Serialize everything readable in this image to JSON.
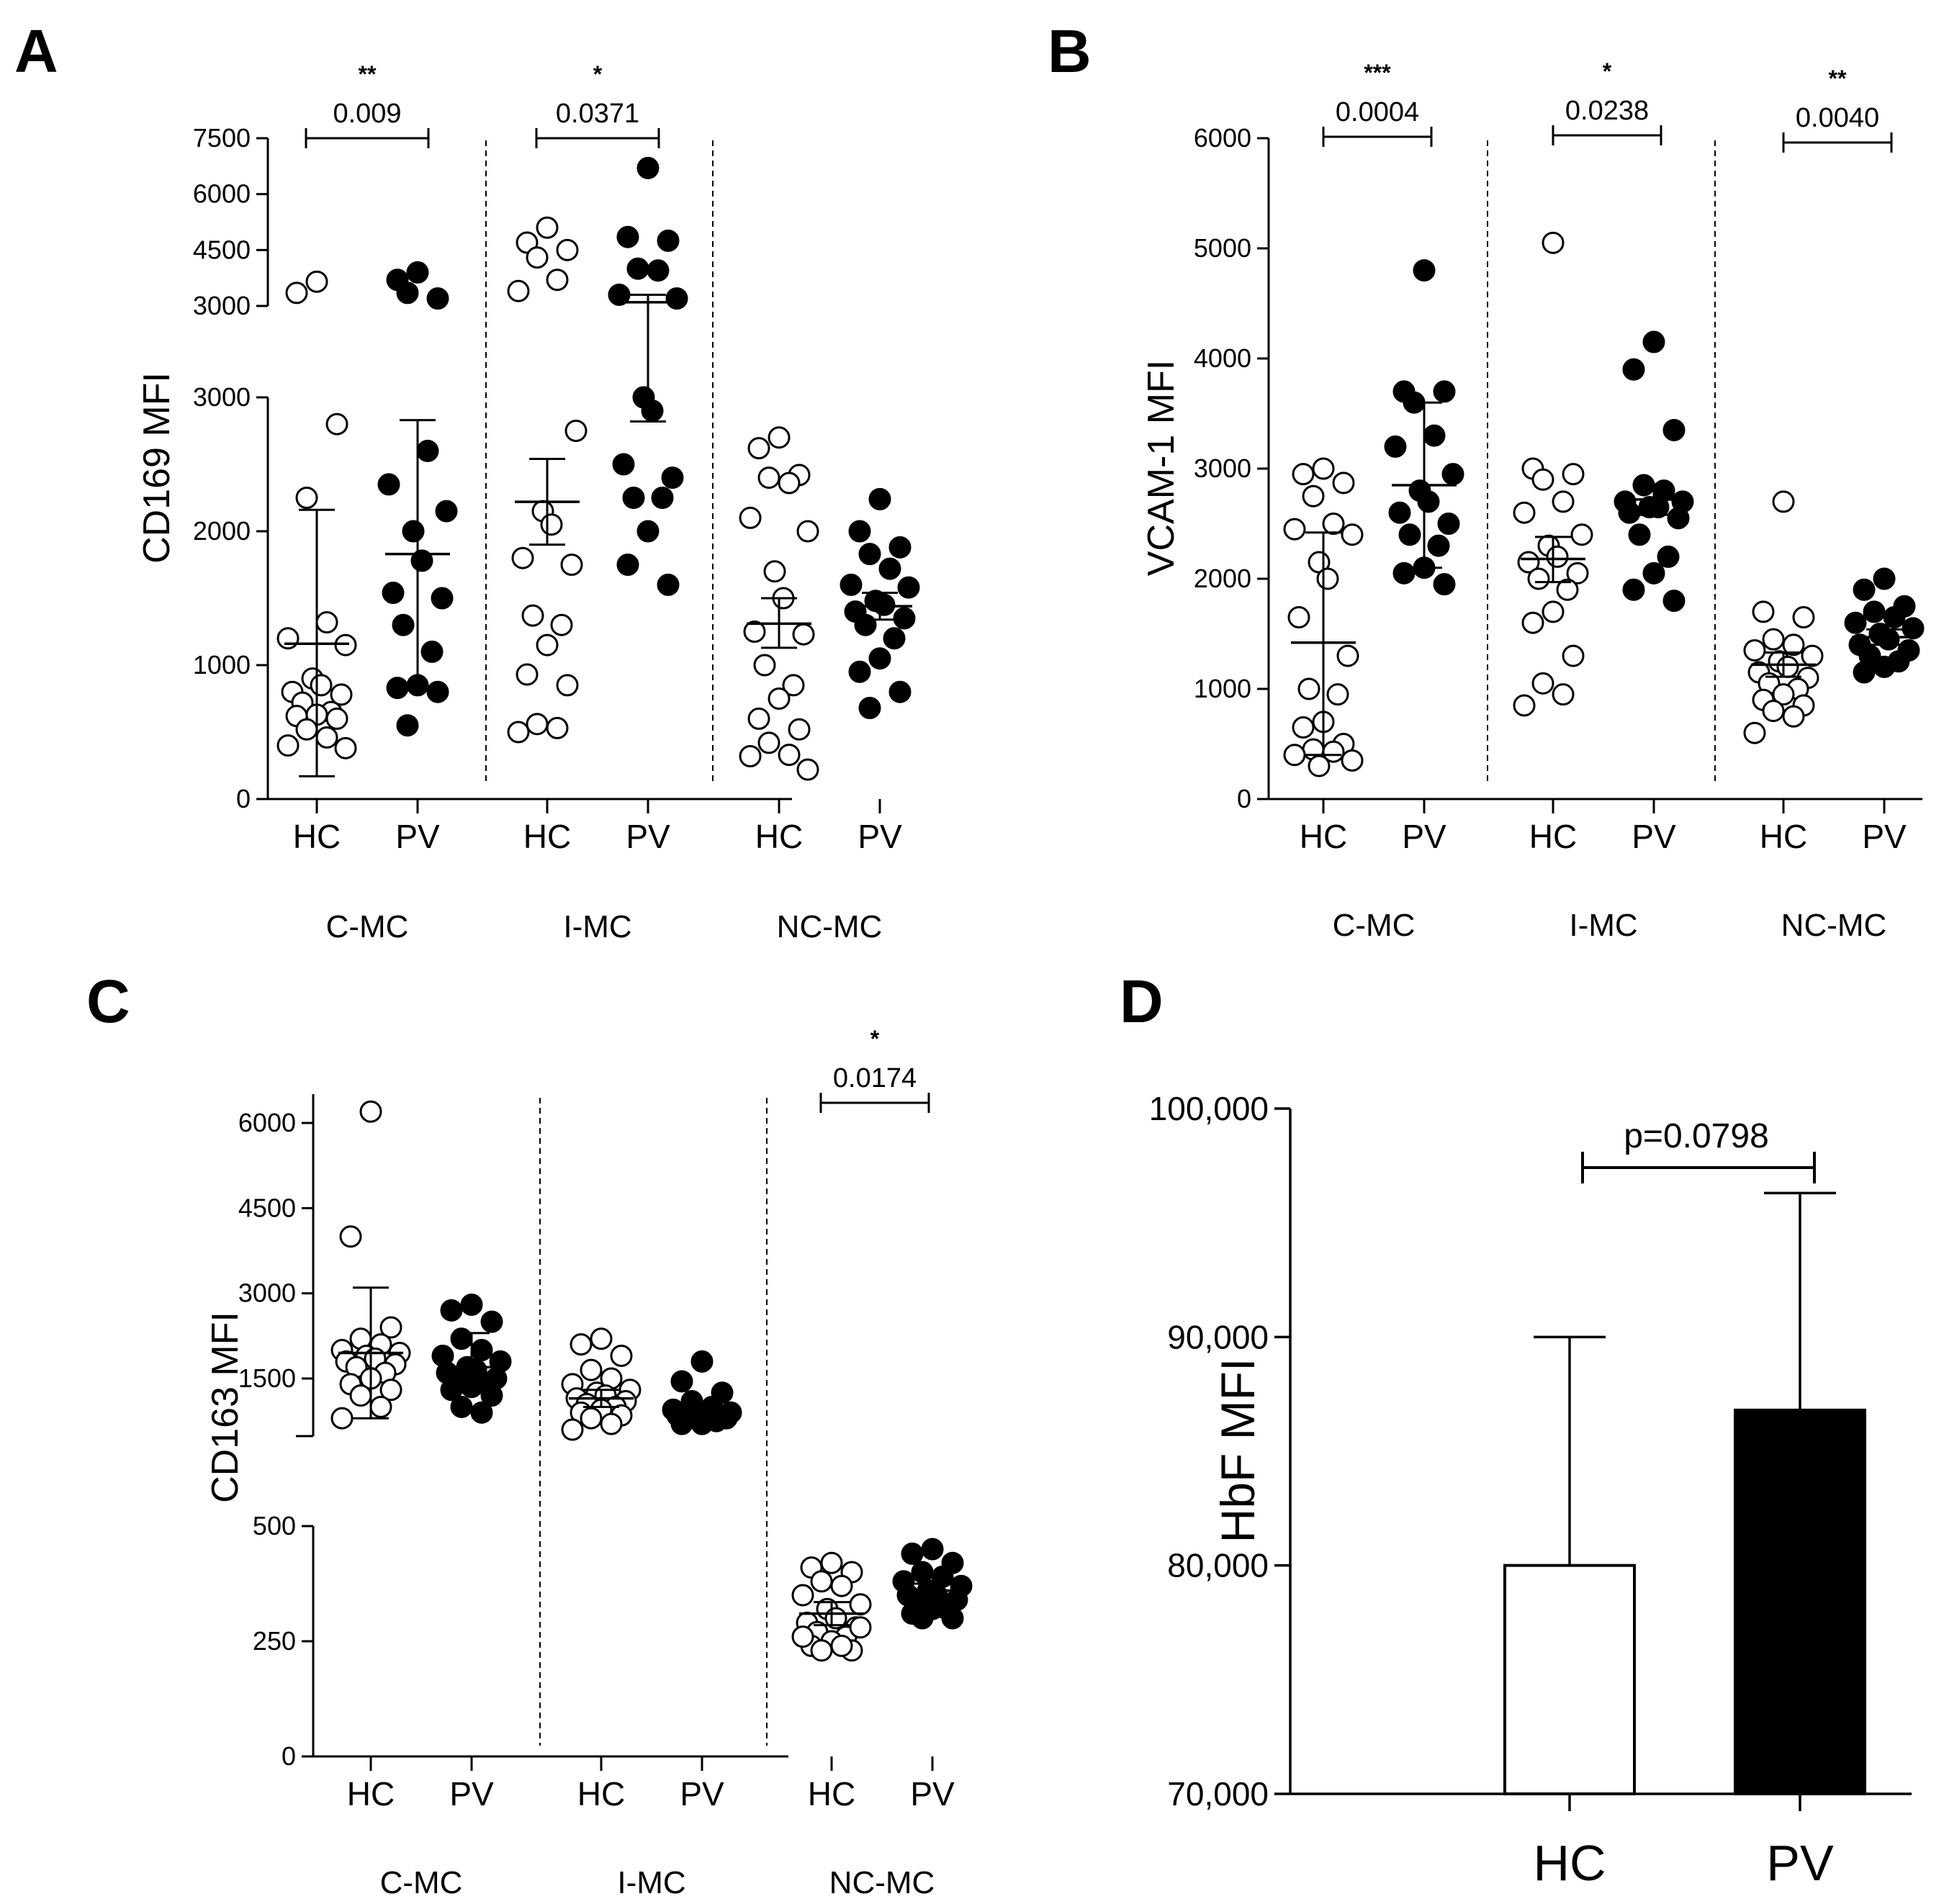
{
  "colors": {
    "ink": "#000000",
    "hc_fill": "#ffffff",
    "pv_fill": "#000000"
  },
  "chart_data": [
    {
      "panel": "A",
      "type": "scatter",
      "ylabel": "CD169 MFI",
      "categories": [
        "HC",
        "PV"
      ],
      "groups": [
        "C-MC",
        "I-MC",
        "NC-MC"
      ],
      "axis_segments": [
        {
          "ylim": [
            0,
            3000
          ],
          "ticks": [
            0,
            1000,
            2000,
            3000
          ]
        },
        {
          "ylim": [
            3000,
            7500
          ],
          "ticks": [
            3000,
            4500,
            6000,
            7500
          ]
        }
      ],
      "comparisons": [
        {
          "group": "C-MC",
          "p": "0.009",
          "stars": "**"
        },
        {
          "group": "I-MC",
          "p": "0.0371",
          "stars": "*"
        }
      ],
      "series": [
        {
          "group": "C-MC",
          "category": "HC",
          "points": [
            3650,
            3350,
            2800,
            2250,
            1320,
            1200,
            1150,
            900,
            850,
            800,
            780,
            720,
            650,
            630,
            620,
            600,
            520,
            460,
            400,
            380
          ],
          "mean": 1160,
          "err_low": 170,
          "err_high": 2160
        },
        {
          "group": "C-MC",
          "category": "PV",
          "points": [
            3900,
            3700,
            3200,
            3350,
            2600,
            2350,
            2150,
            2000,
            1780,
            1540,
            1500,
            1300,
            1100,
            850,
            830,
            800,
            550
          ],
          "mean": 1830,
          "err_low": 840,
          "err_high": 2830
        },
        {
          "group": "I-MC",
          "category": "HC",
          "points": [
            5100,
            4700,
            4500,
            4300,
            3700,
            3400,
            2750,
            2150,
            2050,
            1800,
            1750,
            1370,
            1300,
            1150,
            930,
            850,
            560,
            530,
            500
          ],
          "mean": 2220,
          "err_low": 1900,
          "err_high": 2540
        },
        {
          "group": "I-MC",
          "category": "PV",
          "points": [
            6700,
            4850,
            4750,
            4000,
            3950,
            3300,
            3200,
            3000,
            2900,
            2500,
            2400,
            2250,
            2250,
            2000,
            1750,
            1600
          ],
          "mean": 3100,
          "err_low": 2820,
          "err_high": 3300
        },
        {
          "group": "NC-MC",
          "category": "HC",
          "points": [
            2700,
            2620,
            2420,
            2400,
            2360,
            2100,
            2000,
            1700,
            1500,
            1250,
            1230,
            1000,
            850,
            750,
            600,
            520,
            420,
            330,
            320,
            220
          ],
          "mean": 1310,
          "err_low": 1130,
          "err_high": 1500
        },
        {
          "group": "NC-MC",
          "category": "PV",
          "points": [
            2240,
            2000,
            1880,
            1830,
            1720,
            1600,
            1580,
            1480,
            1450,
            1400,
            1350,
            1300,
            1200,
            1050,
            950,
            800,
            680
          ],
          "mean": 1440,
          "err_low": 1340,
          "err_high": 1540
        }
      ]
    },
    {
      "panel": "B",
      "type": "scatter",
      "ylabel": "VCAM-1 MFI",
      "categories": [
        "HC",
        "PV"
      ],
      "groups": [
        "C-MC",
        "I-MC",
        "NC-MC"
      ],
      "ylim": [
        0,
        6000
      ],
      "ticks": [
        0,
        1000,
        2000,
        3000,
        4000,
        5000,
        6000
      ],
      "comparisons": [
        {
          "group": "C-MC",
          "p": "0.0004",
          "stars": "***"
        },
        {
          "group": "I-MC",
          "p": "0.0238",
          "stars": "*"
        },
        {
          "group": "NC-MC",
          "p": "0.0040",
          "stars": "**"
        }
      ],
      "series": [
        {
          "group": "C-MC",
          "category": "HC",
          "points": [
            3000,
            2950,
            2870,
            2750,
            2500,
            2450,
            2400,
            2150,
            2000,
            1650,
            1300,
            1000,
            950,
            700,
            650,
            500,
            450,
            430,
            400,
            350,
            300
          ],
          "mean": 1420,
          "err_low": 400,
          "err_high": 2420
        },
        {
          "group": "C-MC",
          "category": "PV",
          "points": [
            4800,
            3700,
            3700,
            3600,
            3300,
            3200,
            2950,
            2800,
            2700,
            2600,
            2500,
            2400,
            2300,
            2100,
            2050,
            1950
          ],
          "mean": 2850,
          "err_low": 2100,
          "err_high": 3600
        },
        {
          "group": "I-MC",
          "category": "HC",
          "points": [
            5050,
            3000,
            2950,
            2900,
            2700,
            2600,
            2400,
            2300,
            2200,
            2150,
            2050,
            2000,
            1900,
            1700,
            1600,
            1300,
            1050,
            950,
            850
          ],
          "mean": 2180,
          "err_low": 1970,
          "err_high": 2380
        },
        {
          "group": "I-MC",
          "category": "PV",
          "points": [
            4150,
            3900,
            3350,
            2850,
            2800,
            2700,
            2700,
            2650,
            2650,
            2600,
            2550,
            2400,
            2200,
            2050,
            1900,
            1800
          ],
          "mean": 2720,
          "err_low": 2580,
          "err_high": 2860
        },
        {
          "group": "NC-MC",
          "category": "HC",
          "points": [
            2700,
            1700,
            1650,
            1450,
            1400,
            1350,
            1300,
            1250,
            1200,
            1150,
            1100,
            1050,
            1000,
            950,
            900,
            850,
            800,
            750,
            600
          ],
          "mean": 1220,
          "err_low": 1110,
          "err_high": 1330
        },
        {
          "group": "NC-MC",
          "category": "PV",
          "points": [
            2000,
            1900,
            1750,
            1700,
            1650,
            1600,
            1550,
            1500,
            1450,
            1400,
            1350,
            1300,
            1250,
            1200,
            1150
          ],
          "mean": 1470,
          "err_low": 1400,
          "err_high": 1540
        }
      ]
    },
    {
      "panel": "C",
      "type": "scatter",
      "ylabel": "CD163 MFI",
      "categories": [
        "HC",
        "PV"
      ],
      "groups": [
        "C-MC",
        "I-MC",
        "NC-MC"
      ],
      "axis_segments": [
        {
          "ylim": [
            0,
            500
          ],
          "ticks": [
            0,
            250,
            500
          ]
        },
        {
          "ylim": [
            0,
            6500
          ],
          "ticks": [
            1500,
            3000,
            4500,
            6000
          ],
          "display_from": 0
        }
      ],
      "comparisons": [
        {
          "group": "NC-MC",
          "p": "0.0174",
          "stars": "*"
        }
      ],
      "series": [
        {
          "group": "C-MC",
          "category": "HC",
          "points": [
            6200,
            4000,
            2400,
            2200,
            2100,
            2000,
            1950,
            1900,
            1850,
            1800,
            1750,
            1700,
            1600,
            1500,
            1400,
            1300,
            1200,
            1000,
            800
          ],
          "mean": 1950,
          "err_low": 800,
          "err_high": 3100
        },
        {
          "group": "C-MC",
          "category": "PV",
          "points": [
            2800,
            2700,
            2500,
            2200,
            2000,
            1900,
            1800,
            1700,
            1650,
            1600,
            1500,
            1450,
            1400,
            1350,
            1300,
            1200,
            1000,
            900
          ],
          "mean": 1700,
          "err_low": 1250,
          "err_high": 2300
        },
        {
          "group": "I-MC",
          "category": "HC",
          "points": [
            2200,
            2100,
            1900,
            1650,
            1500,
            1400,
            1300,
            1250,
            1200,
            1150,
            1100,
            1050,
            1000,
            950,
            900,
            850,
            800,
            700,
            600
          ],
          "mean": 1150,
          "err_low": 1000,
          "err_high": 1300
        },
        {
          "group": "I-MC",
          "category": "PV",
          "points": [
            1800,
            1450,
            1250,
            1100,
            1000,
            950,
            900,
            900,
            850,
            850,
            800,
            800,
            750,
            700,
            700
          ],
          "mean": 900,
          "err_low": 820,
          "err_high": 1000
        },
        {
          "group": "NC-MC",
          "category": "HC",
          "points": [
            420,
            410,
            400,
            380,
            370,
            350,
            330,
            320,
            300,
            290,
            280,
            270,
            260,
            250,
            240,
            230,
            230,
            240,
            260,
            280
          ],
          "mean": 310,
          "err_low": 285,
          "err_high": 335
        },
        {
          "group": "NC-MC",
          "category": "PV",
          "points": [
            450,
            440,
            420,
            400,
            390,
            380,
            370,
            360,
            350,
            350,
            340,
            330,
            320,
            320,
            310,
            300,
            300
          ],
          "mean": 360,
          "err_low": 345,
          "err_high": 375
        }
      ]
    },
    {
      "panel": "D",
      "type": "bar",
      "ylabel": "HbF MFI",
      "categories": [
        "HC",
        "PV"
      ],
      "values": [
        80000,
        86800
      ],
      "err_high": [
        90000,
        96300
      ],
      "ylim": [
        70000,
        100000
      ],
      "ticks": [
        "70,000",
        "80,000",
        "90,000",
        "100,000"
      ],
      "tick_values": [
        70000,
        80000,
        90000,
        100000
      ],
      "comparison": {
        "p": "p=0.0798"
      }
    }
  ]
}
